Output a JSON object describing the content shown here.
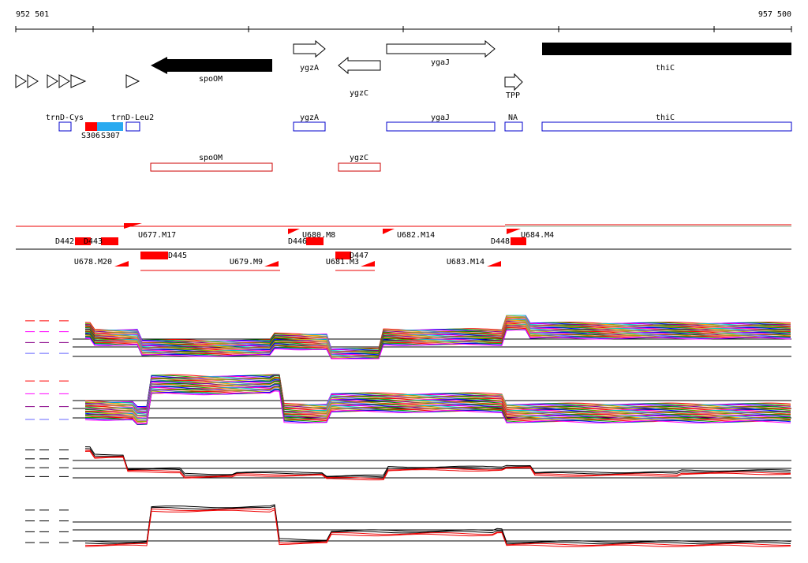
{
  "ruler": {
    "start": "952 501",
    "end": "957 500"
  },
  "genes": [
    {
      "label": "spoOM"
    },
    {
      "label": "ygzA"
    },
    {
      "label": "ygzC"
    },
    {
      "label": "ygaJ"
    },
    {
      "label": "TPP"
    },
    {
      "label": "thiC"
    }
  ],
  "annotations": [
    {
      "label": "trnD-Cys"
    },
    {
      "label": "trnD-Leu2"
    },
    {
      "label": "S306"
    },
    {
      "label": "S307"
    },
    {
      "label": "ygzA"
    },
    {
      "label": "ygaJ"
    },
    {
      "label": "NA"
    },
    {
      "label": "thiC"
    },
    {
      "label": "spoOM"
    },
    {
      "label": "ygzC"
    }
  ],
  "segments": [
    {
      "label": "D442"
    },
    {
      "label": "D443"
    },
    {
      "label": "U677.M17"
    },
    {
      "label": "U678.M20"
    },
    {
      "label": "D445"
    },
    {
      "label": "U679.M9"
    },
    {
      "label": "U680.M8"
    },
    {
      "label": "D446"
    },
    {
      "label": "U681.M3"
    },
    {
      "label": "D447"
    },
    {
      "label": "U682.M14"
    },
    {
      "label": "U683.M14"
    },
    {
      "label": "D448"
    },
    {
      "label": "U684.M4"
    }
  ]
}
